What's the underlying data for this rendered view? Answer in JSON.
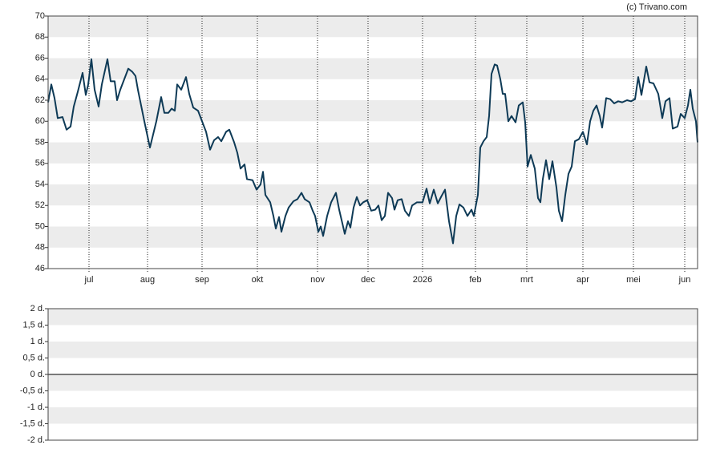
{
  "chart_data": [
    {
      "type": "line",
      "annotation": "(c) Trivano.com",
      "xlim": [
        0,
        810
      ],
      "ylim": [
        46,
        70
      ],
      "xticks": [
        {
          "value": 51,
          "label": "jul"
        },
        {
          "value": 124,
          "label": "aug"
        },
        {
          "value": 192,
          "label": "sep"
        },
        {
          "value": 261,
          "label": "okt"
        },
        {
          "value": 336,
          "label": "nov"
        },
        {
          "value": 399,
          "label": "dec"
        },
        {
          "value": 467,
          "label": "2026"
        },
        {
          "value": 533,
          "label": "feb"
        },
        {
          "value": 597,
          "label": "mrt"
        },
        {
          "value": 667,
          "label": "apr"
        },
        {
          "value": 730,
          "label": "mei"
        },
        {
          "value": 794,
          "label": "jun"
        }
      ],
      "yticks": [
        46,
        48,
        50,
        52,
        54,
        56,
        58,
        60,
        62,
        64,
        66,
        68,
        70
      ],
      "bands": true,
      "x": [
        0,
        4,
        8,
        12,
        18,
        23,
        28,
        32,
        37,
        43,
        47,
        50,
        54,
        58,
        63,
        67,
        74,
        78,
        83,
        86,
        90,
        95,
        100,
        105,
        109,
        112,
        120,
        127,
        135,
        141,
        145,
        150,
        154,
        158,
        161,
        166,
        172,
        176,
        181,
        187,
        192,
        197,
        202,
        207,
        212,
        216,
        222,
        226,
        232,
        236,
        240,
        245,
        248,
        255,
        260,
        265,
        268,
        271,
        277,
        281,
        284,
        288,
        291,
        296,
        300,
        306,
        311,
        316,
        320,
        326,
        330,
        333,
        337,
        340,
        343,
        348,
        353,
        359,
        363,
        367,
        370,
        374,
        377,
        381,
        385,
        389,
        393,
        398,
        403,
        408,
        412,
        416,
        420,
        424,
        429,
        432,
        436,
        441,
        445,
        450,
        454,
        460,
        467,
        472,
        476,
        481,
        486,
        490,
        495,
        500,
        505,
        509,
        513,
        518,
        523,
        528,
        531,
        536,
        539,
        543,
        547,
        550,
        553,
        557,
        560,
        564,
        567,
        570,
        574,
        578,
        583,
        587,
        592,
        595,
        598,
        602,
        607,
        611,
        614,
        617,
        621,
        625,
        629,
        634,
        637,
        641,
        645,
        649,
        653,
        657,
        662,
        667,
        672,
        676,
        680,
        684,
        688,
        691,
        696,
        701,
        706,
        711,
        716,
        722,
        727,
        732,
        736,
        740,
        746,
        750,
        755,
        761,
        766,
        770,
        775,
        779,
        785,
        789,
        794,
        798,
        801,
        804,
        808,
        810
      ],
      "series": [
        {
          "color": "#0e3a56",
          "values": [
            61.8,
            63.5,
            62.2,
            60.3,
            60.4,
            59.2,
            59.5,
            61.4,
            62.8,
            64.6,
            62.5,
            63.5,
            65.9,
            63.0,
            61.4,
            63.5,
            65.9,
            63.8,
            63.8,
            62.0,
            63.0,
            64.0,
            65.0,
            64.7,
            64.3,
            63.0,
            60.0,
            57.5,
            60.0,
            62.3,
            60.8,
            60.8,
            61.2,
            61.0,
            63.5,
            63.0,
            64.2,
            62.6,
            61.3,
            61.0,
            60.0,
            59.0,
            57.3,
            58.2,
            58.5,
            58.1,
            59.0,
            59.2,
            58.0,
            57.0,
            55.5,
            55.9,
            54.5,
            54.4,
            53.5,
            54.0,
            55.2,
            53.0,
            52.3,
            51.0,
            49.8,
            50.9,
            49.5,
            51.0,
            51.8,
            52.4,
            52.6,
            53.2,
            52.6,
            52.3,
            51.5,
            51.0,
            49.5,
            50.0,
            49.1,
            51.0,
            52.3,
            53.2,
            51.6,
            50.3,
            49.3,
            50.5,
            49.9,
            51.8,
            52.8,
            52.0,
            52.3,
            52.5,
            51.5,
            51.6,
            52.0,
            50.6,
            51.0,
            53.2,
            52.7,
            51.6,
            52.5,
            52.6,
            51.5,
            51.0,
            52.0,
            52.3,
            52.3,
            53.6,
            52.2,
            53.5,
            52.2,
            52.8,
            53.5,
            50.5,
            48.4,
            51.0,
            52.1,
            51.8,
            51.0,
            51.6,
            51.0,
            53.0,
            57.5,
            58.1,
            58.5,
            60.5,
            64.5,
            65.4,
            65.3,
            64.0,
            62.6,
            62.6,
            60.0,
            60.5,
            59.9,
            61.5,
            61.8,
            59.9,
            55.7,
            56.8,
            55.5,
            52.7,
            52.3,
            54.5,
            56.3,
            54.5,
            56.2,
            53.7,
            51.5,
            50.5,
            53.0,
            55.0,
            55.7,
            58.1,
            58.3,
            59.0,
            57.8,
            60.0,
            61.0,
            61.5,
            60.5,
            59.4,
            62.2,
            62.1,
            61.7,
            61.9,
            61.8,
            62.0,
            61.9,
            62.1,
            64.2,
            62.5,
            65.2,
            63.7,
            63.6,
            62.6,
            60.3,
            61.9,
            62.2,
            59.3,
            59.5,
            60.7,
            60.3,
            61.5,
            63.0,
            61.2,
            60.0,
            58.0
          ]
        }
      ]
    },
    {
      "type": "line",
      "ylim": [
        -2,
        2
      ],
      "bands": true,
      "zeroline": true,
      "yticks": [
        {
          "value": -2,
          "label": "-2 d."
        },
        {
          "value": -1.5,
          "label": "-1,5 d."
        },
        {
          "value": -1,
          "label": "-1 d."
        },
        {
          "value": -0.5,
          "label": "-0,5 d."
        },
        {
          "value": 0,
          "label": "0 d."
        },
        {
          "value": 0.5,
          "label": "0,5 d."
        },
        {
          "value": 1,
          "label": "1 d."
        },
        {
          "value": 1.5,
          "label": "1,5 d."
        },
        {
          "value": 2,
          "label": "2 d."
        }
      ],
      "series": []
    }
  ]
}
